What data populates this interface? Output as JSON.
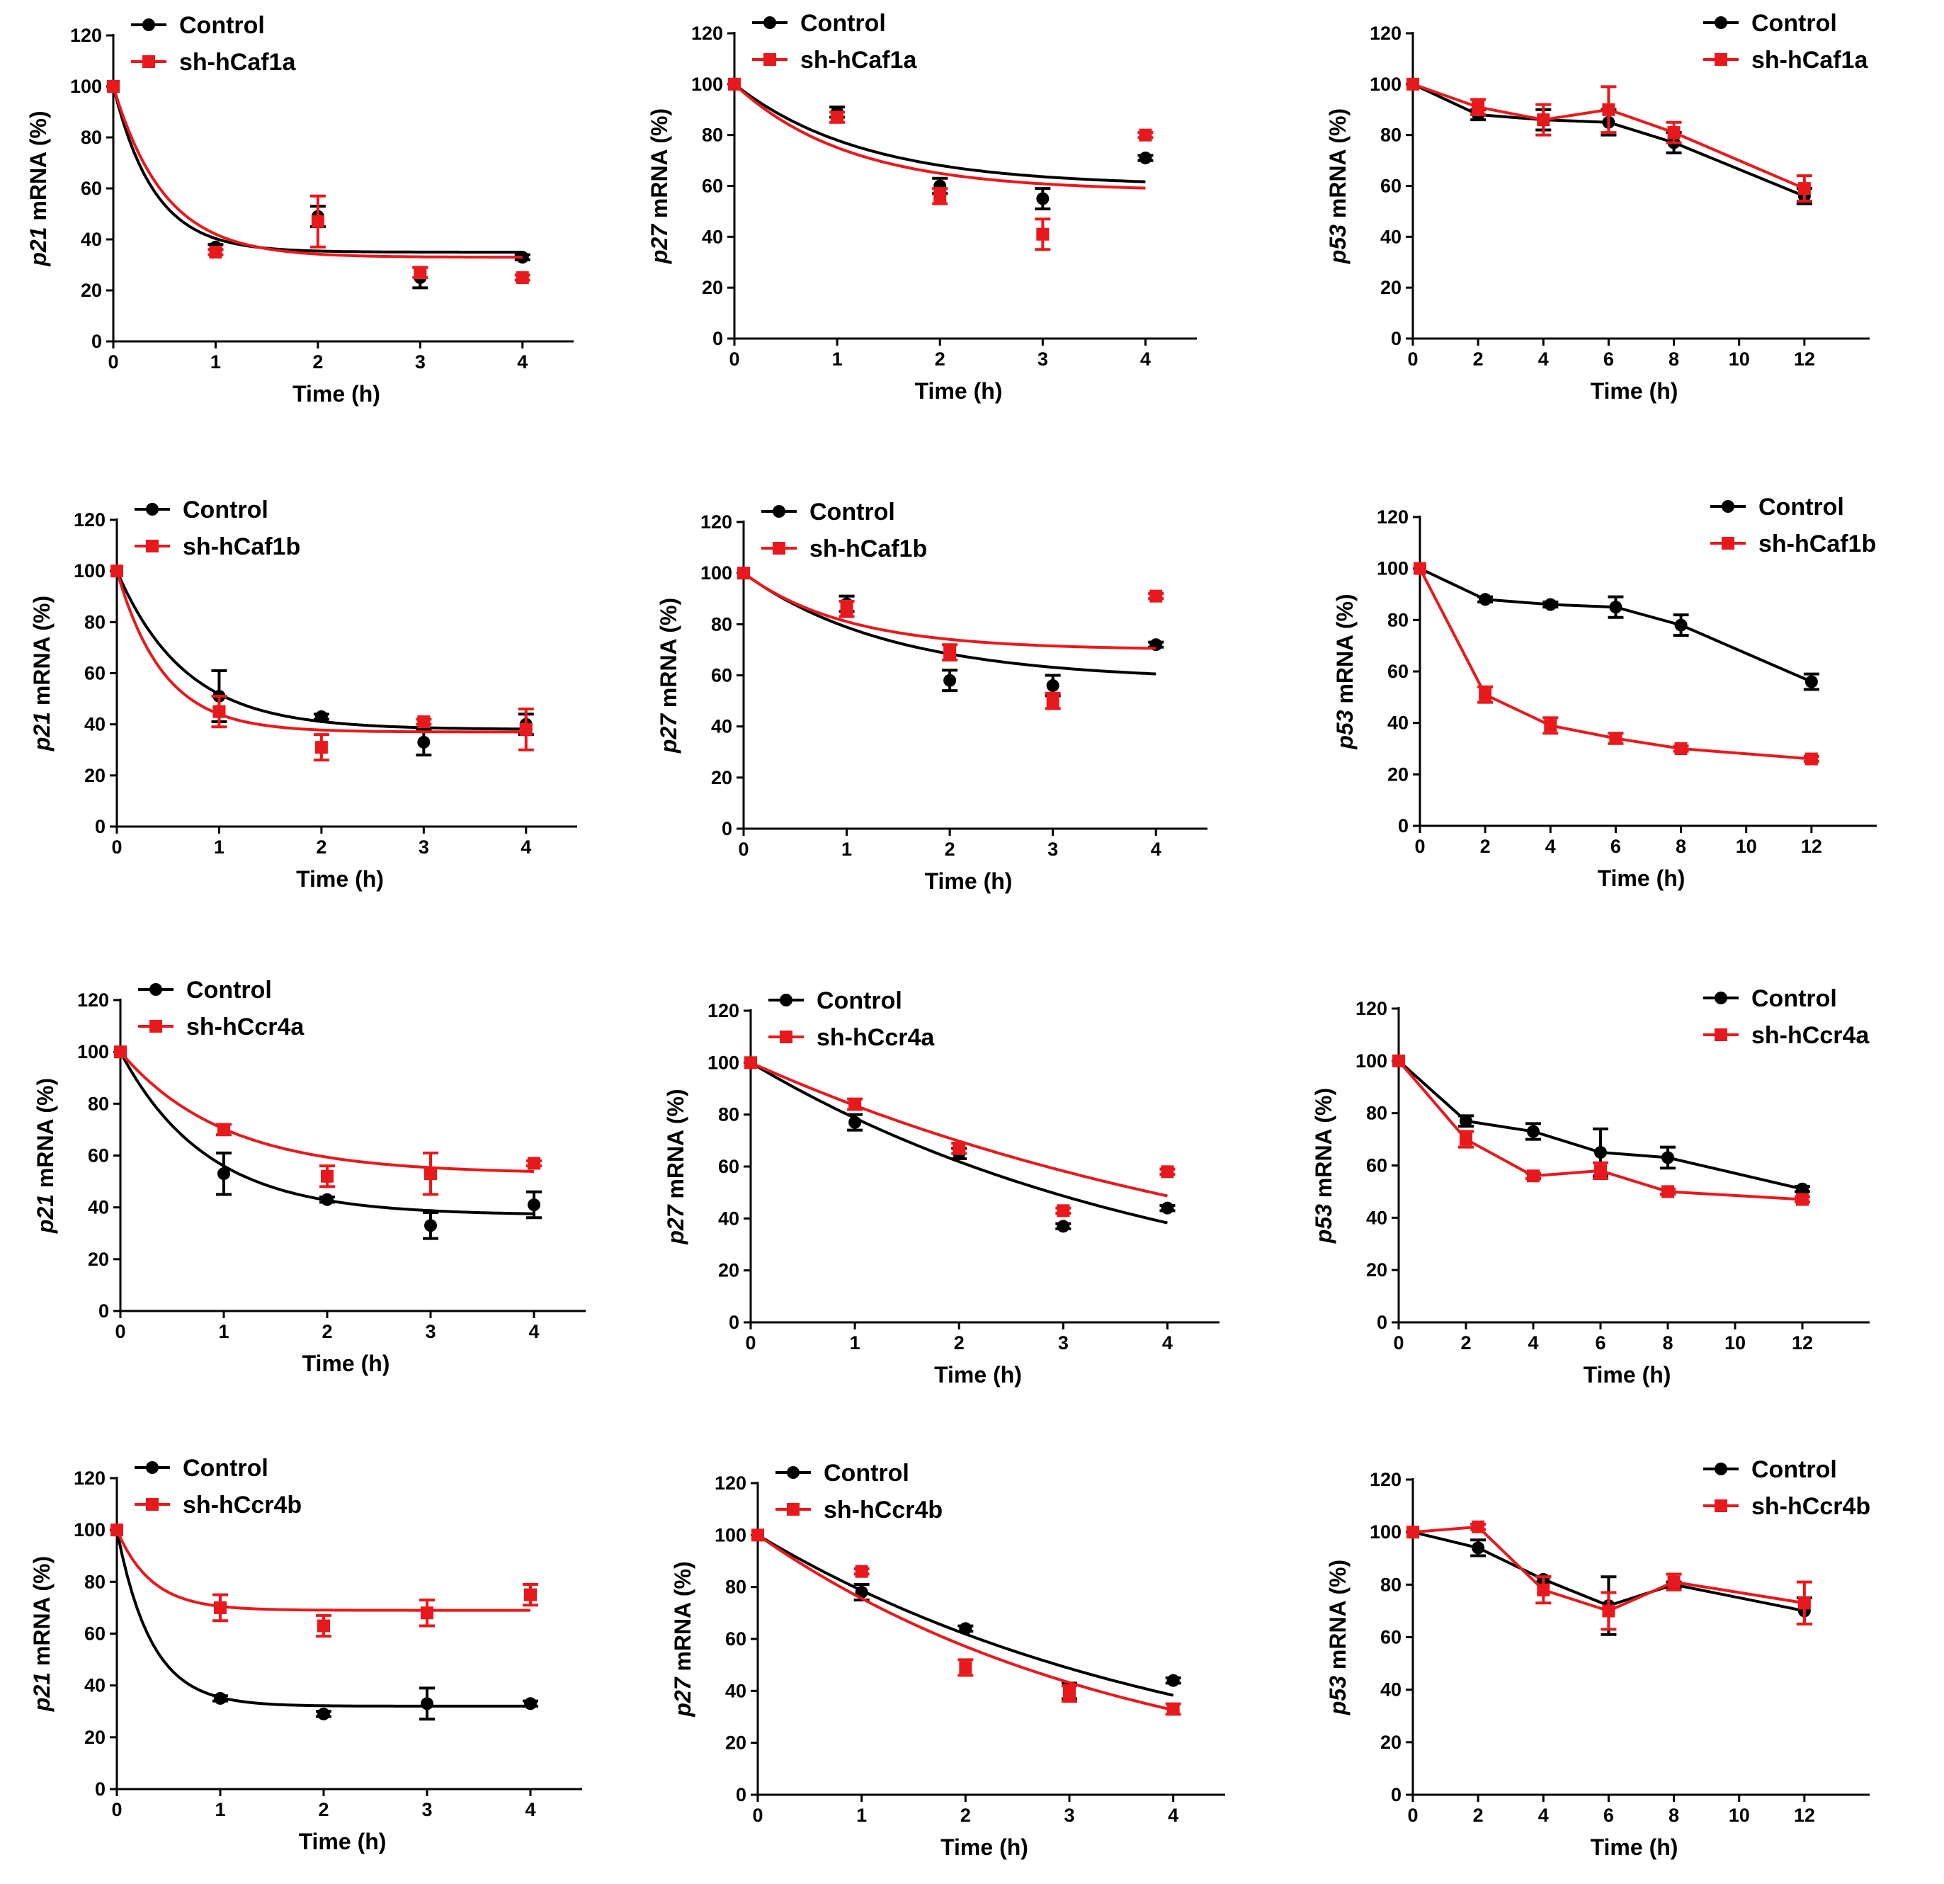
{
  "colors": {
    "control": "#000000",
    "treatment": "#e8191c"
  },
  "x_axis_label": "Time (h)",
  "control_label": "Control",
  "chart_data": [
    {
      "type": "line",
      "subtype": "fit",
      "gene": "p21",
      "ylabel_gene": "p21",
      "ylabel_rest": " mRNA (%)",
      "knockdown": "sh-hCaf1a",
      "x": [
        0,
        1,
        2,
        3,
        4
      ],
      "xticks": [
        0,
        1,
        2,
        3,
        4
      ],
      "xlim": [
        0,
        4.5
      ],
      "ylim": [
        0,
        120
      ],
      "yticks": [
        0,
        20,
        40,
        60,
        80,
        100,
        120
      ],
      "series": [
        {
          "name": "Control",
          "values": [
            100,
            37,
            49,
            25,
            33
          ],
          "err": [
            0,
            1,
            4,
            4,
            1
          ],
          "fit": {
            "plateau": 35,
            "k": 2.5
          }
        },
        {
          "name": "sh-hCaf1a",
          "values": [
            100,
            35,
            47,
            27,
            25
          ],
          "err": [
            0,
            1,
            10,
            2,
            1
          ],
          "fit": {
            "plateau": 33,
            "k": 2.0
          }
        }
      ]
    },
    {
      "type": "line",
      "subtype": "fit",
      "gene": "p27",
      "ylabel_gene": "p27",
      "ylabel_rest": " mRNA (%)",
      "knockdown": "sh-hCaf1a",
      "x": [
        0,
        1,
        2,
        3,
        4
      ],
      "xticks": [
        0,
        1,
        2,
        3,
        4
      ],
      "xlim": [
        0,
        4.5
      ],
      "ylim": [
        0,
        120
      ],
      "yticks": [
        0,
        20,
        40,
        60,
        80,
        100,
        120
      ],
      "series": [
        {
          "name": "Control",
          "values": [
            100,
            89,
            60,
            55,
            71
          ],
          "err": [
            0,
            2,
            3,
            4,
            1
          ],
          "fit": {
            "plateau": 60,
            "k": 0.8
          }
        },
        {
          "name": "sh-hCaf1a",
          "values": [
            100,
            87,
            56,
            41,
            80
          ],
          "err": [
            0,
            2,
            3,
            6,
            1
          ],
          "fit": {
            "plateau": 58,
            "k": 0.9
          }
        }
      ]
    },
    {
      "type": "line",
      "subtype": "connect",
      "gene": "p53",
      "ylabel_gene": "p53",
      "ylabel_rest": " mRNA (%)",
      "knockdown": "sh-hCaf1a",
      "x": [
        0,
        2,
        4,
        6,
        8,
        12
      ],
      "xticks": [
        0,
        2,
        4,
        6,
        8,
        10,
        12
      ],
      "xlim": [
        0,
        14
      ],
      "ylim": [
        0,
        120
      ],
      "yticks": [
        0,
        20,
        40,
        60,
        80,
        100,
        120
      ],
      "series": [
        {
          "name": "Control",
          "values": [
            100,
            88,
            86,
            85,
            77,
            56
          ],
          "err": [
            0,
            2,
            4,
            5,
            4,
            3
          ]
        },
        {
          "name": "sh-hCaf1a",
          "values": [
            100,
            91,
            86,
            90,
            81,
            59
          ],
          "err": [
            0,
            3,
            6,
            9,
            4,
            5
          ]
        }
      ]
    },
    {
      "type": "line",
      "subtype": "fit",
      "gene": "p21",
      "ylabel_gene": "p21",
      "ylabel_rest": " mRNA (%)",
      "knockdown": "sh-hCaf1b",
      "x": [
        0,
        1,
        2,
        3,
        4
      ],
      "xticks": [
        0,
        1,
        2,
        3,
        4
      ],
      "xlim": [
        0,
        4.5
      ],
      "ylim": [
        0,
        120
      ],
      "yticks": [
        0,
        20,
        40,
        60,
        80,
        100,
        120
      ],
      "series": [
        {
          "name": "Control",
          "values": [
            100,
            51,
            43,
            33,
            40
          ],
          "err": [
            0,
            10,
            1,
            5,
            4
          ],
          "fit": {
            "plateau": 38,
            "k": 1.5
          }
        },
        {
          "name": "sh-hCaf1b",
          "values": [
            100,
            45,
            31,
            41,
            38
          ],
          "err": [
            0,
            6,
            5,
            1,
            8
          ],
          "fit": {
            "plateau": 37,
            "k": 2.2
          }
        }
      ]
    },
    {
      "type": "line",
      "subtype": "fit",
      "gene": "p27",
      "ylabel_gene": "p27",
      "ylabel_rest": " mRNA (%)",
      "knockdown": "sh-hCaf1b",
      "x": [
        0,
        1,
        2,
        3,
        4
      ],
      "xticks": [
        0,
        1,
        2,
        3,
        4
      ],
      "xlim": [
        0,
        4.5
      ],
      "ylim": [
        0,
        120
      ],
      "yticks": [
        0,
        20,
        40,
        60,
        80,
        100,
        120
      ],
      "series": [
        {
          "name": "Control",
          "values": [
            100,
            88,
            58,
            56,
            72
          ],
          "err": [
            0,
            3,
            4,
            4,
            1
          ],
          "fit": {
            "plateau": 58,
            "k": 0.7
          }
        },
        {
          "name": "sh-hCaf1b",
          "values": [
            100,
            86,
            69,
            50,
            91
          ],
          "err": [
            0,
            3,
            3,
            3,
            1
          ],
          "fit": {
            "plateau": 70,
            "k": 1.0
          }
        }
      ]
    },
    {
      "type": "line",
      "subtype": "connect",
      "gene": "p53",
      "ylabel_gene": "p53",
      "ylabel_rest": " mRNA (%)",
      "knockdown": "sh-hCaf1b",
      "x": [
        0,
        2,
        4,
        6,
        8,
        12
      ],
      "xticks": [
        0,
        2,
        4,
        6,
        8,
        10,
        12
      ],
      "xlim": [
        0,
        14
      ],
      "ylim": [
        0,
        120
      ],
      "yticks": [
        0,
        20,
        40,
        60,
        80,
        100,
        120
      ],
      "series": [
        {
          "name": "Control",
          "values": [
            100,
            88,
            86,
            85,
            78,
            56
          ],
          "err": [
            0,
            1,
            1,
            4,
            4,
            3
          ]
        },
        {
          "name": "sh-hCaf1b",
          "values": [
            100,
            51,
            39,
            34,
            30,
            26
          ],
          "err": [
            0,
            3,
            3,
            2,
            1,
            1
          ]
        }
      ]
    },
    {
      "type": "line",
      "subtype": "fit",
      "gene": "p21",
      "ylabel_gene": "p21",
      "ylabel_rest": " mRNA (%)",
      "knockdown": "sh-hCcr4a",
      "x": [
        0,
        1,
        2,
        3,
        4
      ],
      "xticks": [
        0,
        1,
        2,
        3,
        4
      ],
      "xlim": [
        0,
        4.5
      ],
      "ylim": [
        0,
        120
      ],
      "yticks": [
        0,
        20,
        40,
        60,
        80,
        100,
        120
      ],
      "series": [
        {
          "name": "Control",
          "values": [
            100,
            53,
            43,
            33,
            41
          ],
          "err": [
            0,
            8,
            1,
            5,
            5
          ],
          "fit": {
            "plateau": 37,
            "k": 1.2
          }
        },
        {
          "name": "sh-hCcr4a",
          "values": [
            100,
            70,
            52,
            53,
            57
          ],
          "err": [
            0,
            2,
            4,
            8,
            1
          ],
          "fit": {
            "plateau": 53,
            "k": 1.0
          }
        }
      ]
    },
    {
      "type": "line",
      "subtype": "fit",
      "gene": "p27",
      "ylabel_gene": "p27",
      "ylabel_rest": " mRNA (%)",
      "knockdown": "sh-hCcr4a",
      "x": [
        0,
        1,
        2,
        3,
        4
      ],
      "xticks": [
        0,
        1,
        2,
        3,
        4
      ],
      "xlim": [
        0,
        4.5
      ],
      "ylim": [
        0,
        120
      ],
      "yticks": [
        0,
        20,
        40,
        60,
        80,
        100,
        120
      ],
      "series": [
        {
          "name": "Control",
          "values": [
            100,
            77,
            65,
            37,
            44
          ],
          "err": [
            0,
            3,
            2,
            1,
            1
          ],
          "fit": {
            "plateau": 0,
            "k": 0.24
          }
        },
        {
          "name": "sh-hCcr4a",
          "values": [
            100,
            84,
            67,
            43,
            58
          ],
          "err": [
            0,
            2,
            2,
            1,
            1
          ],
          "fit": {
            "plateau": 0,
            "k": 0.18
          }
        }
      ]
    },
    {
      "type": "line",
      "subtype": "connect",
      "gene": "p53",
      "ylabel_gene": "p53",
      "ylabel_rest": " mRNA (%)",
      "knockdown": "sh-hCcr4a",
      "x": [
        0,
        2,
        4,
        6,
        8,
        12
      ],
      "xticks": [
        0,
        2,
        4,
        6,
        8,
        10,
        12
      ],
      "xlim": [
        0,
        14
      ],
      "ylim": [
        0,
        120
      ],
      "yticks": [
        0,
        20,
        40,
        60,
        80,
        100,
        120
      ],
      "series": [
        {
          "name": "Control",
          "values": [
            100,
            77,
            73,
            65,
            63,
            51
          ],
          "err": [
            0,
            2,
            3,
            9,
            4,
            1
          ]
        },
        {
          "name": "sh-hCcr4a",
          "values": [
            100,
            70,
            56,
            58,
            50,
            47
          ],
          "err": [
            0,
            3,
            1,
            3,
            1,
            1
          ]
        }
      ]
    },
    {
      "type": "line",
      "subtype": "fit",
      "gene": "p21",
      "ylabel_gene": "p21",
      "ylabel_rest": " mRNA (%)",
      "knockdown": "sh-hCcr4b",
      "x": [
        0,
        1,
        2,
        3,
        4
      ],
      "xticks": [
        0,
        1,
        2,
        3,
        4
      ],
      "xlim": [
        0,
        4.5
      ],
      "ylim": [
        0,
        120
      ],
      "yticks": [
        0,
        20,
        40,
        60,
        80,
        100,
        120
      ],
      "series": [
        {
          "name": "Control",
          "values": [
            100,
            35,
            29,
            33,
            33
          ],
          "err": [
            0,
            1,
            1,
            6,
            1
          ],
          "fit": {
            "plateau": 32,
            "k": 3.0
          }
        },
        {
          "name": "sh-hCcr4b",
          "values": [
            100,
            70,
            63,
            68,
            75
          ],
          "err": [
            0,
            5,
            4,
            5,
            4
          ],
          "fit": {
            "plateau": 69,
            "k": 3.0
          }
        }
      ]
    },
    {
      "type": "line",
      "subtype": "fit",
      "gene": "p27",
      "ylabel_gene": "p27",
      "ylabel_rest": " mRNA (%)",
      "knockdown": "sh-hCcr4b",
      "x": [
        0,
        1,
        2,
        3,
        4
      ],
      "xticks": [
        0,
        1,
        2,
        3,
        4
      ],
      "xlim": [
        0,
        4.5
      ],
      "ylim": [
        0,
        120
      ],
      "yticks": [
        0,
        20,
        40,
        60,
        80,
        100,
        120
      ],
      "series": [
        {
          "name": "Control",
          "values": [
            100,
            78,
            64,
            40,
            44
          ],
          "err": [
            0,
            3,
            1,
            3,
            1
          ],
          "fit": {
            "plateau": 0,
            "k": 0.24
          }
        },
        {
          "name": "sh-hCcr4b",
          "values": [
            100,
            86,
            49,
            39,
            33
          ],
          "err": [
            0,
            1,
            3,
            3,
            2
          ],
          "fit": {
            "plateau": 0,
            "k": 0.28
          }
        }
      ]
    },
    {
      "type": "line",
      "subtype": "connect",
      "gene": "p53",
      "ylabel_gene": "p53",
      "ylabel_rest": " mRNA (%)",
      "knockdown": "sh-hCcr4b",
      "x": [
        0,
        2,
        4,
        6,
        8,
        12
      ],
      "xticks": [
        0,
        2,
        4,
        6,
        8,
        10,
        12
      ],
      "xlim": [
        0,
        14
      ],
      "ylim": [
        0,
        120
      ],
      "yticks": [
        0,
        20,
        40,
        60,
        80,
        100,
        120
      ],
      "series": [
        {
          "name": "Control",
          "values": [
            100,
            94,
            82,
            72,
            80,
            70
          ],
          "err": [
            0,
            3,
            1,
            11,
            1,
            5
          ]
        },
        {
          "name": "sh-hCcr4b",
          "values": [
            100,
            102,
            78,
            70,
            81,
            73
          ],
          "err": [
            0,
            1,
            5,
            7,
            3,
            8
          ]
        }
      ]
    }
  ]
}
